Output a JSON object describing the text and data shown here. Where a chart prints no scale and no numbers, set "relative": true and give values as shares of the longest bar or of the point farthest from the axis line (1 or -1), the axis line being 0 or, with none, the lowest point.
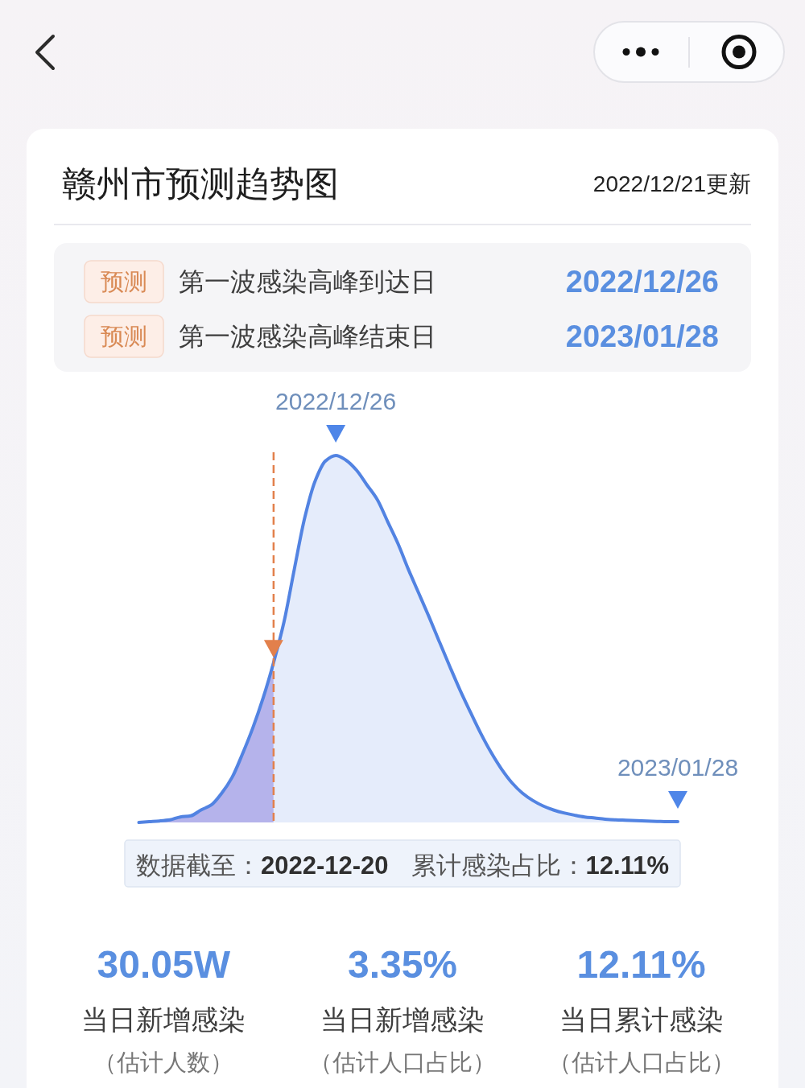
{
  "chart_data": {
    "type": "area",
    "title": "赣州市预测趋势图",
    "subtitle": "2022/12/21更新",
    "relative": true,
    "categories": [
      null,
      null,
      null,
      null,
      null,
      null,
      null,
      null,
      null,
      null,
      null,
      null,
      null,
      null,
      null,
      null,
      null,
      null,
      null,
      null,
      null,
      null,
      null,
      null,
      null,
      null,
      null,
      null,
      null,
      null,
      null,
      null,
      null,
      null,
      null,
      null,
      null,
      null,
      null,
      null,
      null,
      null,
      null,
      null,
      null,
      null,
      null,
      null,
      null,
      null,
      null,
      null,
      null
    ],
    "series": [
      {
        "color": "#b5b3eb",
        "values": [
          0,
          0.002,
          0.004,
          0.007,
          0.015,
          0.018,
          0.034,
          0.048,
          0.08,
          0.123,
          0.187,
          0.258,
          0.34,
          0.436,
          null,
          null,
          null,
          null,
          null,
          null,
          null,
          null,
          null,
          null,
          null,
          null,
          null,
          null,
          null,
          null,
          null,
          null,
          null,
          null,
          null,
          null,
          null,
          null,
          null,
          null,
          null,
          null,
          null,
          null,
          null,
          null,
          null,
          null,
          null,
          null,
          null,
          null,
          null
        ]
      },
      {
        "color": "#e5ecfb",
        "values": [
          null,
          null,
          null,
          null,
          null,
          null,
          null,
          null,
          null,
          null,
          null,
          null,
          null,
          0.436,
          0.546,
          0.69,
          0.83,
          0.93,
          0.985,
          1,
          0.987,
          0.96,
          0.92,
          0.88,
          0.82,
          0.76,
          0.69,
          0.625,
          0.56,
          0.492,
          0.425,
          0.36,
          0.3,
          0.242,
          0.19,
          0.145,
          0.108,
          0.08,
          0.06,
          0.045,
          0.034,
          0.026,
          0.02,
          0.015,
          0.012,
          0.009,
          0.007,
          0.006,
          0.005,
          0.004,
          0.003,
          0.002,
          0.002
        ]
      },
      {
        "type": "line",
        "color": "#5283e2",
        "values": [
          0,
          0.002,
          0.004,
          0.007,
          0.015,
          0.018,
          0.034,
          0.048,
          0.08,
          0.123,
          0.187,
          0.258,
          0.34,
          0.436,
          0.546,
          0.69,
          0.83,
          0.93,
          0.985,
          1,
          0.987,
          0.96,
          0.92,
          0.88,
          0.82,
          0.76,
          0.69,
          0.625,
          0.56,
          0.492,
          0.425,
          0.36,
          0.3,
          0.242,
          0.19,
          0.145,
          0.108,
          0.08,
          0.06,
          0.045,
          0.034,
          0.026,
          0.02,
          0.015,
          0.012,
          0.009,
          0.007,
          0.006,
          0.005,
          0.004,
          0.003,
          0.002,
          0.002
        ]
      }
    ],
    "annotations": [
      {
        "text": "2022/12/26",
        "y": 1
      },
      {
        "text": "2023/01/28",
        "y": 0.002
      },
      "预测",
      "第一波感染高峰到达日",
      "2022/12/26",
      "预测",
      "第一波感染高峰结束日",
      "2023/01/28",
      "数据截至：",
      "2022-12-20",
      "累计感染占比：",
      "12.11%",
      "30.05W",
      "当日新增感染",
      "（估计人数）",
      "3.35%",
      "当日新增感染",
      "（估计人口占比）",
      "12.11%",
      "当日累计感染",
      "（估计人口占比）"
    ]
  }
}
